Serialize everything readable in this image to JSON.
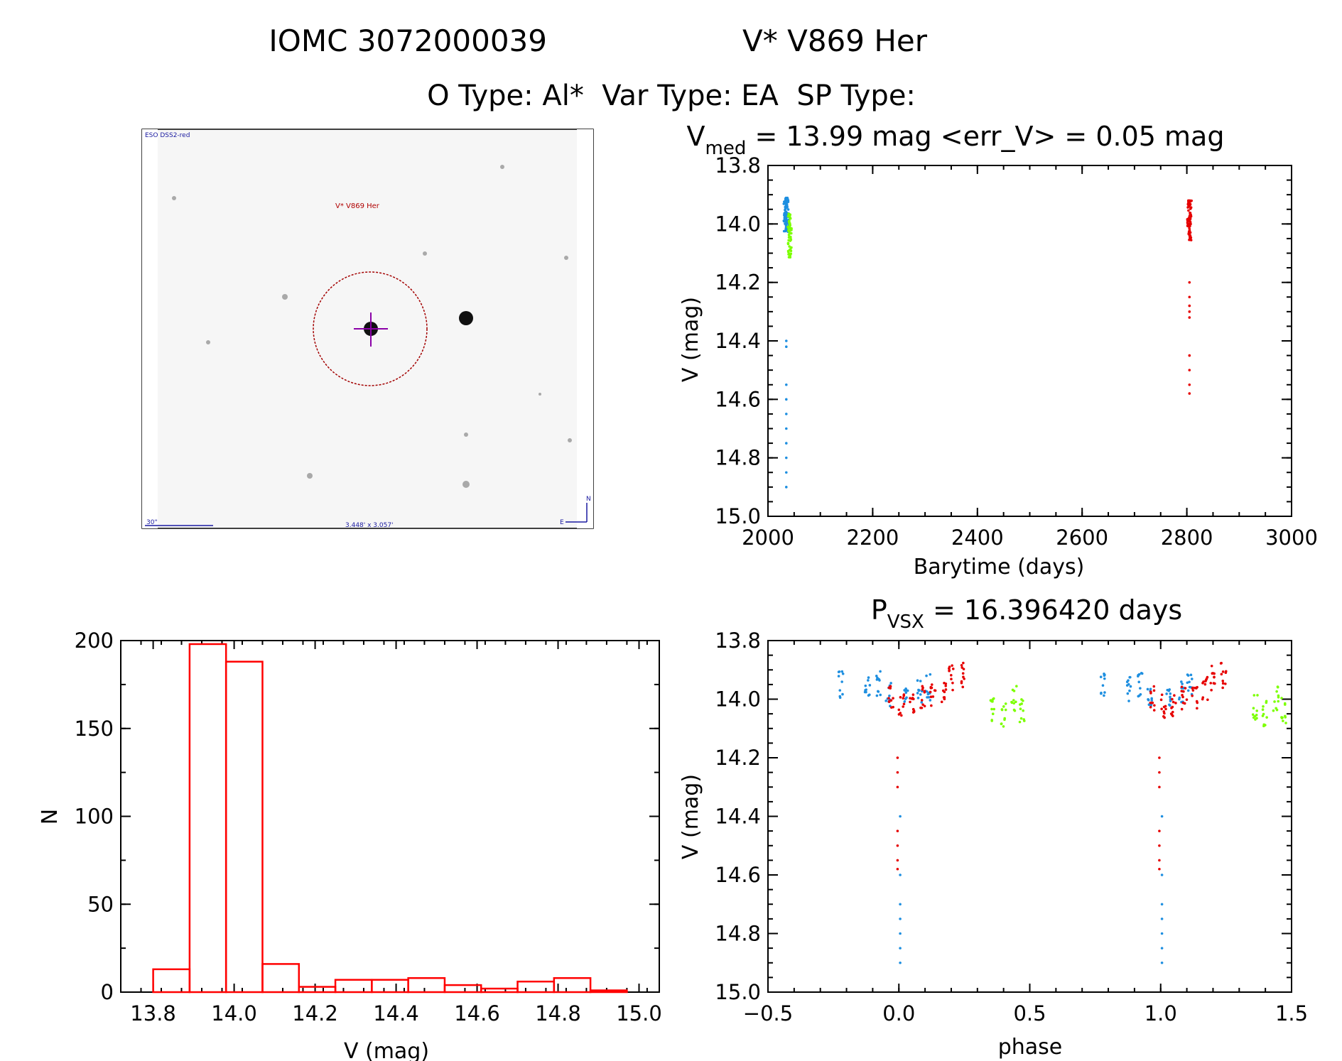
{
  "header": {
    "title_left": "IOMC 3072000039",
    "title_right": "V* V869 Her",
    "subtitle": "O Type: Al*  Var Type: EA  SP Type:"
  },
  "thumbnail": {
    "survey_label": "ESO DSS2-red",
    "object_label": "V* V869 Her",
    "scale_label": "30\"",
    "fov_label": "3.448' x 3.057'",
    "north": "N",
    "east": "E"
  },
  "colors": {
    "blue": "#1e8fe0",
    "green": "#7cff00",
    "red": "#e60000",
    "hist": "#ff0000",
    "marker": "#8b00a8",
    "circle": "#a30000"
  },
  "chart_data": [
    {
      "id": "lightcurve",
      "type": "scatter",
      "title_main": "V",
      "title_sub": "med",
      "title_rest": " = 13.99 mag <err_V> = 0.05 mag",
      "xlabel": "Barytime (days)",
      "ylabel": "V (mag)",
      "xlim": [
        2000,
        3000
      ],
      "ylim": [
        15.0,
        13.8
      ],
      "xticks": [
        "2000",
        "2200",
        "2400",
        "2600",
        "2800",
        "3000"
      ],
      "yticks": [
        "13.8",
        "14.0",
        "14.2",
        "14.4",
        "14.6",
        "14.8",
        "15.0"
      ],
      "series": [
        {
          "color": "blue",
          "x": [
            2032,
            2033,
            2034,
            2035,
            2036,
            2037,
            2038
          ],
          "ymed": 13.97,
          "yspread": 0.06,
          "dips": [
            14.4,
            14.42,
            14.55,
            14.6,
            14.65,
            14.7,
            14.75,
            14.8,
            14.85,
            14.9
          ]
        },
        {
          "color": "green",
          "x": [
            2040,
            2041,
            2042,
            2043
          ],
          "ymed": 14.04,
          "yspread": 0.08,
          "dips": []
        },
        {
          "color": "red",
          "x": [
            2803,
            2804,
            2805,
            2806,
            2807
          ],
          "ymed": 13.99,
          "yspread": 0.07,
          "dips": [
            14.2,
            14.25,
            14.28,
            14.3,
            14.32,
            14.45,
            14.5,
            14.55,
            14.58
          ]
        }
      ]
    },
    {
      "id": "histogram",
      "type": "bar",
      "xlabel": "V (mag)",
      "ylabel": "N",
      "xlim": [
        13.72,
        15.05
      ],
      "ylim": [
        0,
        200
      ],
      "xticks": [
        "13.8",
        "14.0",
        "14.2",
        "14.4",
        "14.6",
        "14.8",
        "15.0"
      ],
      "yticks": [
        "0",
        "50",
        "100",
        "150",
        "200"
      ],
      "bin_edges": [
        13.8,
        13.89,
        13.98,
        14.07,
        14.16,
        14.25,
        14.34,
        14.43,
        14.52,
        14.61,
        14.7,
        14.79,
        14.88,
        14.97
      ],
      "values": [
        13,
        198,
        188,
        16,
        3,
        7,
        7,
        8,
        4,
        2,
        6,
        8,
        1
      ]
    },
    {
      "id": "phased",
      "type": "scatter",
      "title_main": "P",
      "title_sub": "VSX",
      "title_rest": " = 16.396420 days",
      "xlabel": "phase",
      "ylabel": "V (mag)",
      "xlim": [
        -0.5,
        1.5
      ],
      "ylim": [
        15.0,
        13.8
      ],
      "xticks": [
        "−0.5",
        "0.0",
        "0.5",
        "1.0",
        "1.5"
      ],
      "yticks": [
        "13.8",
        "14.0",
        "14.2",
        "14.4",
        "14.6",
        "14.8",
        "15.0"
      ],
      "series": [
        {
          "color": "blue",
          "groups": [
            [
              -0.22,
              13.95
            ],
            [
              -0.12,
              13.97
            ],
            [
              -0.08,
              13.95
            ],
            [
              -0.04,
              13.98
            ],
            [
              0.03,
              14.0
            ],
            [
              0.08,
              13.97
            ],
            [
              0.11,
              13.96
            ]
          ]
        },
        {
          "color": "green",
          "groups": [
            [
              0.36,
              14.03
            ],
            [
              0.4,
              14.05
            ],
            [
              0.44,
              14.0
            ],
            [
              0.47,
              14.04
            ]
          ]
        },
        {
          "color": "red",
          "groups": [
            [
              -0.03,
              14.0
            ],
            [
              0.01,
              14.02
            ],
            [
              0.05,
              14.02
            ],
            [
              0.09,
              14.0
            ],
            [
              0.13,
              13.99
            ],
            [
              0.17,
              13.97
            ],
            [
              0.2,
              13.93
            ],
            [
              0.24,
              13.92
            ]
          ]
        }
      ],
      "eclipse": {
        "phase": 0.005,
        "blue_depths": [
          14.4,
          14.6,
          14.7,
          14.75,
          14.8,
          14.85,
          14.9
        ],
        "red_depths": [
          14.2,
          14.25,
          14.3,
          14.45,
          14.5,
          14.55,
          14.58
        ]
      }
    }
  ]
}
